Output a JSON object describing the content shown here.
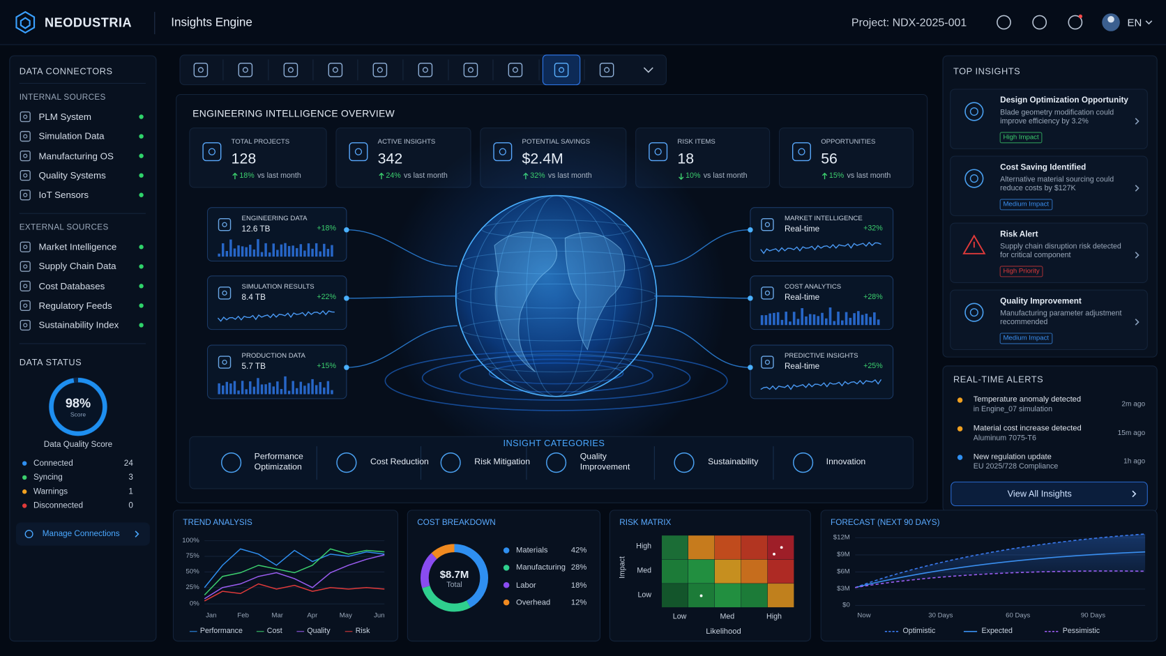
{
  "header": {
    "brand": "NEODUSTRIA",
    "app": "Insights Engine",
    "project": "Project: NDX-2025-001",
    "language": "EN"
  },
  "sidebar": {
    "title": "DATA CONNECTORS",
    "groups": [
      {
        "title": "INTERNAL SOURCES",
        "items": [
          "PLM System",
          "Simulation Data",
          "Manufacturing OS",
          "Quality Systems",
          "IoT Sensors"
        ]
      },
      {
        "title": "EXTERNAL SOURCES",
        "items": [
          "Market Intelligence",
          "Supply Chain Data",
          "Cost Databases",
          "Regulatory Feeds",
          "Sustainability Index"
        ]
      }
    ],
    "status": {
      "title": "DATA STATUS",
      "score": "98%",
      "score_note": "Score",
      "caption": "Data Quality Score",
      "rows": [
        {
          "label": "Connected",
          "value": 24,
          "color": "#2f8ff0"
        },
        {
          "label": "Syncing",
          "value": 3,
          "color": "#3ccf6e"
        },
        {
          "label": "Warnings",
          "value": 1,
          "color": "#f0a020"
        },
        {
          "label": "Disconnected",
          "value": 0,
          "color": "#e03a3a"
        }
      ]
    },
    "action": "Manage Connections"
  },
  "overview": {
    "title": "ENGINEERING INTELLIGENCE OVERVIEW",
    "kpis": [
      {
        "label": "TOTAL PROJECTS",
        "value": "128",
        "change": "18%",
        "direction": "up",
        "note": "vs last month"
      },
      {
        "label": "ACTIVE INSIGHTS",
        "value": "342",
        "change": "24%",
        "direction": "up",
        "note": "vs last month"
      },
      {
        "label": "POTENTIAL SAVINGS",
        "value": "$2.4M",
        "change": "32%",
        "direction": "up",
        "note": "vs last month"
      },
      {
        "label": "RISK ITEMS",
        "value": "18",
        "change": "10%",
        "direction": "down",
        "note": "vs last month"
      },
      {
        "label": "OPPORTUNITIES",
        "value": "56",
        "change": "15%",
        "direction": "up",
        "note": "vs last month"
      }
    ],
    "sources": [
      {
        "title": "ENGINEERING DATA",
        "value": "12.6 TB",
        "change": "+18%"
      },
      {
        "title": "SIMULATION RESULTS",
        "value": "8.4 TB",
        "change": "+22%"
      },
      {
        "title": "PRODUCTION DATA",
        "value": "5.7 TB",
        "change": "+15%"
      }
    ],
    "outputs": [
      {
        "title": "MARKET INTELLIGENCE",
        "value": "Real-time",
        "change": "+32%"
      },
      {
        "title": "COST ANALYTICS",
        "value": "Real-time",
        "change": "+28%"
      },
      {
        "title": "PREDICTIVE INSIGHTS",
        "value": "Real-time",
        "change": "+25%"
      }
    ],
    "categories": {
      "title": "INSIGHT CATEGORIES",
      "items": [
        "Performance Optimization",
        "Cost Reduction",
        "Risk Mitigation",
        "Quality Improvement",
        "Sustainability",
        "Innovation"
      ]
    }
  },
  "insights": {
    "title": "TOP INSIGHTS",
    "items": [
      {
        "title": "Design Optimization Opportunity",
        "text": "Blade geometry modification could improve efficiency by 3.2%",
        "badge": "High Impact",
        "badge_color": "#3ccf6e"
      },
      {
        "title": "Cost Saving Identified",
        "text": "Alternative material sourcing could reduce costs by $127K",
        "badge": "Medium Impact",
        "badge_color": "#3a8ff0"
      },
      {
        "title": "Risk Alert",
        "text": "Supply chain disruption risk detected for critical component",
        "badge": "High Priority",
        "badge_color": "#e03a3a"
      },
      {
        "title": "Quality Improvement",
        "text": "Manufacturing parameter adjustment recommended",
        "badge": "Medium Impact",
        "badge_color": "#3a8ff0"
      }
    ]
  },
  "alerts": {
    "title": "REAL-TIME ALERTS",
    "items": [
      {
        "text": "Temperature anomaly detected",
        "detail": "in Engine_07 simulation",
        "time": "2m ago",
        "color": "#f0a020"
      },
      {
        "text": "Material cost increase detected",
        "detail": "Aluminum 7075-T6",
        "time": "15m ago",
        "color": "#f0a020"
      },
      {
        "text": "New regulation update",
        "detail": "EU 2025/728 Compliance",
        "time": "1h ago",
        "color": "#2f8ff0"
      }
    ],
    "action": "View All Insights"
  },
  "trend": {
    "title": "TREND ANALYSIS",
    "yticks": [
      "100%",
      "75%",
      "50%",
      "25%",
      "0%"
    ],
    "xticks": [
      "Jan",
      "Feb",
      "Mar",
      "Apr",
      "May",
      "Jun"
    ],
    "series": [
      {
        "name": "Performance",
        "color": "#2f8ff0"
      },
      {
        "name": "Cost",
        "color": "#3ccf6e"
      },
      {
        "name": "Quality",
        "color": "#9a5cf0"
      },
      {
        "name": "Risk",
        "color": "#e03a3a"
      }
    ]
  },
  "cost": {
    "title": "COST BREAKDOWN",
    "total": "$8.7M",
    "total_label": "Total",
    "items": [
      {
        "name": "Materials",
        "value": 42,
        "label": "42%",
        "color": "#2f8ff0"
      },
      {
        "name": "Manufacturing",
        "value": 28,
        "label": "28%",
        "color": "#2fcf8e"
      },
      {
        "name": "Labor",
        "value": 18,
        "label": "18%",
        "color": "#8a4cf0"
      },
      {
        "name": "Overhead",
        "value": 12,
        "label": "12%",
        "color": "#f08a20"
      }
    ]
  },
  "risk": {
    "title": "RISK MATRIX",
    "y_label": "Impact",
    "x_label": "Likelihood",
    "rows": [
      "High",
      "Med",
      "Low"
    ],
    "cols": [
      "Low",
      "Med",
      "High"
    ]
  },
  "forecast": {
    "title": "FORECAST (NEXT 90 DAYS)",
    "yticks": [
      "$12M",
      "$9M",
      "$6M",
      "$3M",
      "$0"
    ],
    "xticks": [
      "Now",
      "30 Days",
      "60 Days",
      "90 Days"
    ],
    "series": [
      {
        "name": "Optimistic",
        "color": "#3a7af0",
        "dashed": true
      },
      {
        "name": "Expected",
        "color": "#3a8ff0",
        "dashed": false
      },
      {
        "name": "Pessimistic",
        "color": "#9a5cf0",
        "dashed": true
      }
    ]
  }
}
